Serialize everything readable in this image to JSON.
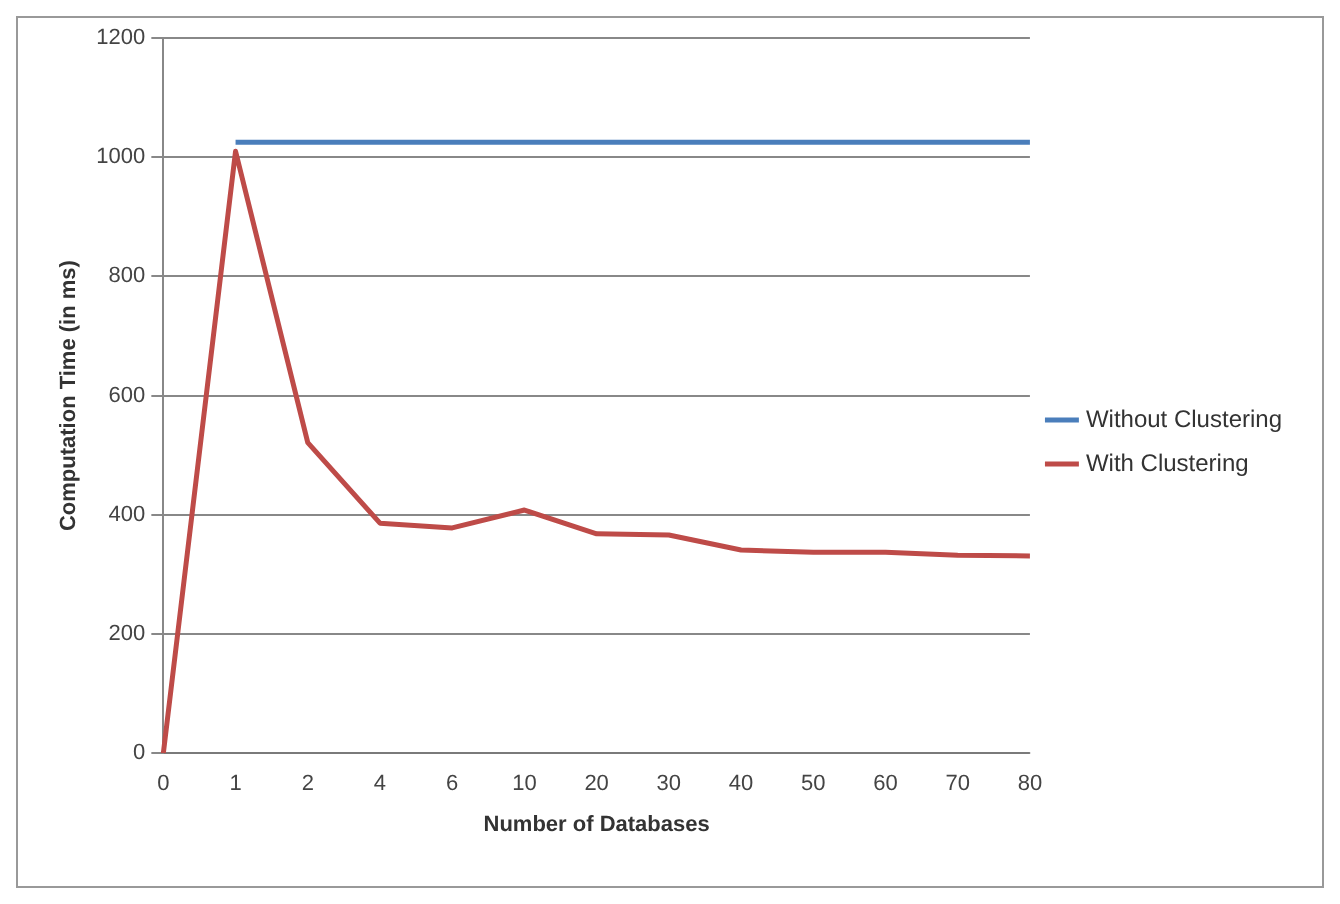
{
  "chart_data": {
    "type": "line",
    "xlabel": "Number of Databases",
    "ylabel": "Computation Time (in ms)",
    "categories": [
      "0",
      "1",
      "2",
      "4",
      "6",
      "10",
      "20",
      "30",
      "40",
      "50",
      "60",
      "70",
      "80"
    ],
    "series": [
      {
        "name": "Without Clustering",
        "color": "#4a7ebb",
        "values": [
          null,
          1025,
          1025,
          1025,
          1025,
          1025,
          1025,
          1025,
          1025,
          1025,
          1025,
          1025,
          1025
        ]
      },
      {
        "name": "With Clustering",
        "color": "#be4b48",
        "values": [
          0,
          1010,
          521,
          386,
          378,
          408,
          368,
          366,
          341,
          337,
          337,
          332,
          331
        ]
      }
    ],
    "ylim": [
      0,
      1200
    ],
    "yticks": [
      0,
      200,
      400,
      600,
      800,
      1000,
      1200
    ],
    "grid": "y",
    "legend": "right",
    "marker": "none",
    "line_style": "solid"
  }
}
